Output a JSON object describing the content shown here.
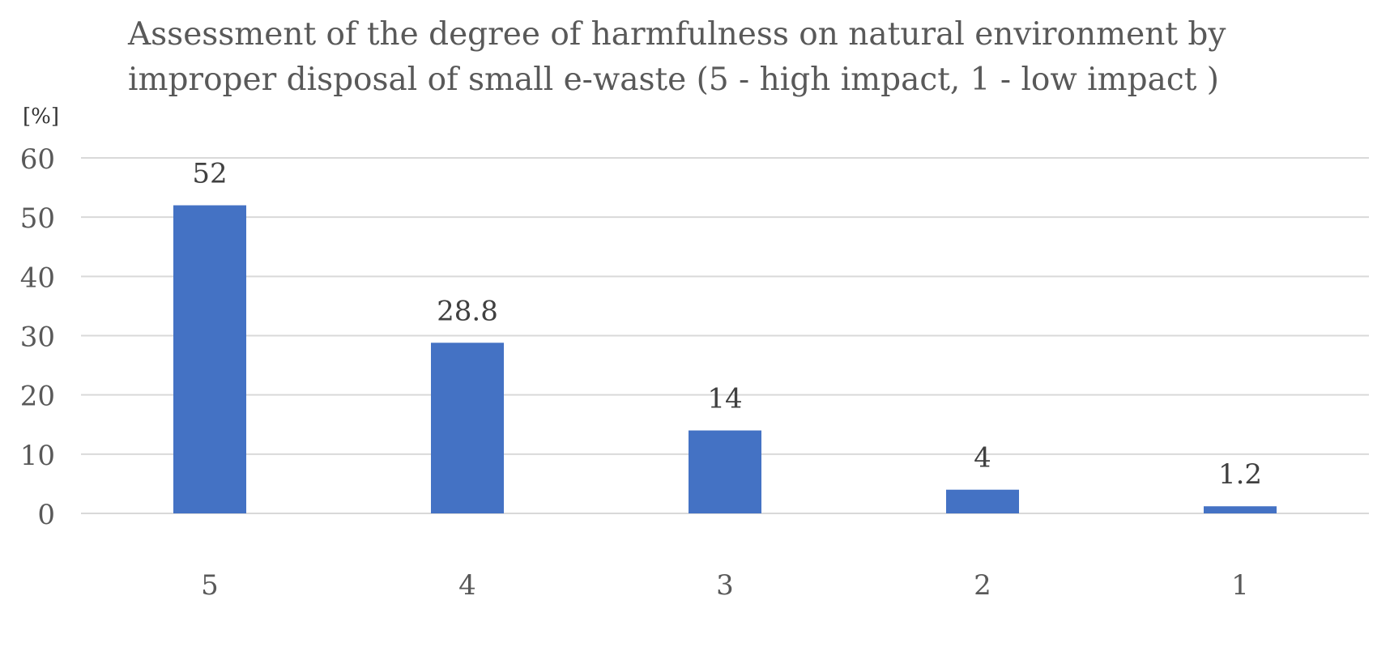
{
  "chart_data": {
    "type": "bar",
    "title_lines": [
      "Assessment of the degree of harmfulness on natural environment by",
      "improper disposal of small e-waste (5 - high impact, 1 - low impact )"
    ],
    "ylabel": "[%]",
    "xlabel": "",
    "categories": [
      "5",
      "4",
      "3",
      "2",
      "1"
    ],
    "values": [
      52,
      28.8,
      14,
      4,
      1.2
    ],
    "data_labels": [
      "52",
      "28.8",
      "14",
      "4",
      "1.2"
    ],
    "ylim": [
      0,
      60
    ],
    "yticks": [
      "0",
      "10",
      "20",
      "30",
      "40",
      "50",
      "60"
    ],
    "grid": true,
    "legend": "none",
    "bar_color": "#4472C4",
    "grid_color": "#D9D9D9",
    "text_color": "#595959"
  }
}
